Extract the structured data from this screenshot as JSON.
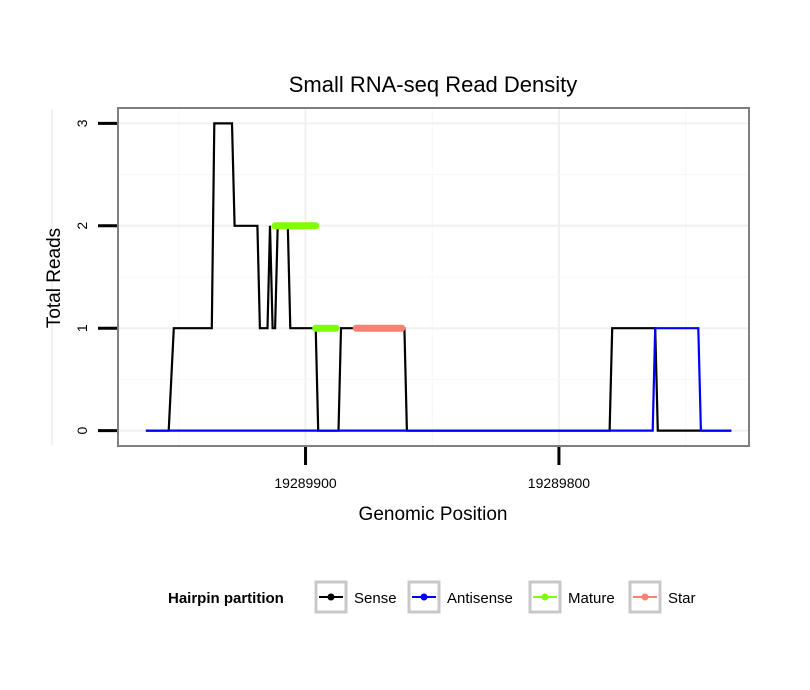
{
  "chart_data": {
    "type": "line",
    "title": "Small RNA-seq Read Density",
    "xlabel": "Genomic Position",
    "ylabel": "Total Reads",
    "x_reversed": true,
    "xlim": [
      19289974,
      19289725
    ],
    "ylim": [
      -0.15,
      3.15
    ],
    "xticks": [
      19289900,
      19289800
    ],
    "xtick_labels": [
      "19289900",
      "19289800"
    ],
    "yticks": [
      0,
      1,
      2,
      3
    ],
    "ytick_labels": [
      "0",
      "1",
      "2",
      "3"
    ],
    "grid": true,
    "legend": {
      "title": "Hairpin partition",
      "position": "bottom",
      "entries": [
        "Sense",
        "Antisense",
        "Mature",
        "Star"
      ]
    },
    "colors": {
      "Sense": "#000000",
      "Antisense": "#0000ff",
      "Mature": "#7fff00",
      "Star": "#fa8072"
    },
    "series": [
      {
        "name": "Sense",
        "x": [
          19289963,
          19289954,
          19289952,
          19289937,
          19289936,
          19289929,
          19289928,
          19289919,
          19289918,
          19289915,
          19289914,
          19289913,
          19289912,
          19289911,
          19289910,
          19289907,
          19289906,
          19289896,
          19289895,
          19289887,
          19289886,
          19289880,
          19289879,
          19289861,
          19289860,
          19289837,
          19289836,
          19289818,
          19289817,
          19289810,
          19289809,
          19289780,
          19289779,
          19289762,
          19289761,
          19289732
        ],
        "values": [
          0,
          0,
          1,
          1,
          3,
          3,
          2,
          2,
          1,
          1,
          2,
          1,
          1,
          2,
          2,
          2,
          1,
          1,
          0,
          0,
          1,
          1,
          1,
          1,
          0,
          0,
          0,
          0,
          0,
          0,
          0,
          0,
          1,
          1,
          0,
          0
        ]
      },
      {
        "name": "Antisense",
        "x": [
          19289963,
          19289763,
          19289762,
          19289745,
          19289744,
          19289732
        ],
        "values": [
          0,
          0,
          1,
          1,
          0,
          0
        ]
      },
      {
        "name": "Mature",
        "segments": [
          {
            "x": [
              19289912,
              19289896
            ],
            "values": [
              2,
              2
            ]
          },
          {
            "x": [
              19289896,
              19289888
            ],
            "values": [
              1,
              1
            ]
          }
        ]
      },
      {
        "name": "Star",
        "segments": [
          {
            "x": [
              19289880,
              19289862
            ],
            "values": [
              1,
              1
            ]
          }
        ]
      }
    ]
  }
}
